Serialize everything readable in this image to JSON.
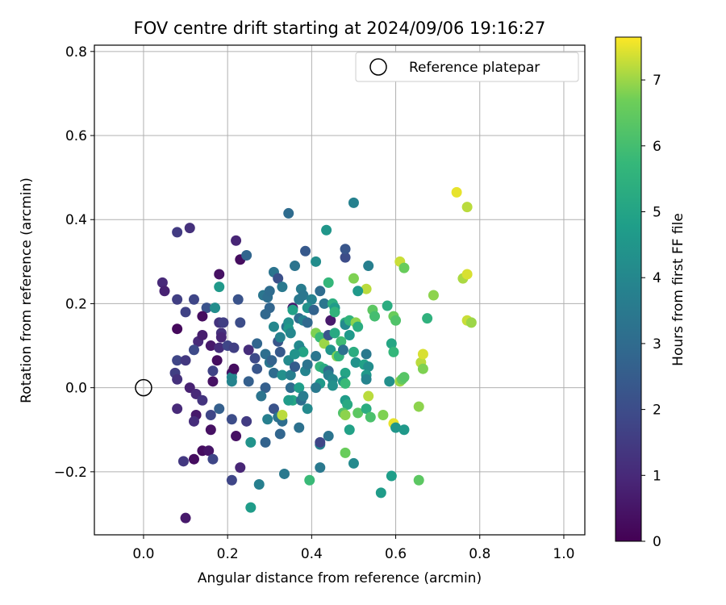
{
  "chart_data": {
    "type": "scatter",
    "title": "FOV centre drift starting at 2024/09/06 19:16:27",
    "xlabel": "Angular distance from reference (arcmin)",
    "ylabel": "Rotation from reference (arcmin)",
    "xlim": [
      -0.117,
      1.05
    ],
    "ylim": [
      -0.35,
      0.815
    ],
    "xticks": [
      "0.0",
      "0.2",
      "0.4",
      "0.6",
      "0.8",
      "1.0"
    ],
    "yticks": [
      "−0.2",
      "0.0",
      "0.2",
      "0.4",
      "0.6",
      "0.8"
    ],
    "xtick_values": [
      0.0,
      0.2,
      0.4,
      0.6,
      0.8,
      1.0
    ],
    "ytick_values": [
      -0.2,
      0.0,
      0.2,
      0.4,
      0.6,
      0.8
    ],
    "grid": true,
    "legend": {
      "position": "top-right",
      "label": "Reference platepar"
    },
    "reference_point": {
      "x": 0.0,
      "y": 0.0
    },
    "colorbar": {
      "label": "Hours from first FF file",
      "colormap": "viridis",
      "range": [
        0,
        7.65
      ],
      "ticks": [
        "0",
        "1",
        "2",
        "3",
        "4",
        "5",
        "6",
        "7"
      ],
      "tick_values": [
        0,
        1,
        2,
        3,
        4,
        5,
        6,
        7
      ]
    },
    "points": [
      {
        "x": 0.1,
        "y": -0.31,
        "h": 0.6
      },
      {
        "x": 0.08,
        "y": 0.37,
        "h": 1.5
      },
      {
        "x": 0.11,
        "y": 0.38,
        "h": 1.2
      },
      {
        "x": 0.045,
        "y": 0.25,
        "h": 1.0
      },
      {
        "x": 0.05,
        "y": 0.23,
        "h": 0.8
      },
      {
        "x": 0.08,
        "y": 0.21,
        "h": 1.6
      },
      {
        "x": 0.1,
        "y": 0.18,
        "h": 1.7
      },
      {
        "x": 0.12,
        "y": 0.21,
        "h": 1.8
      },
      {
        "x": 0.15,
        "y": 0.19,
        "h": 2.2
      },
      {
        "x": 0.14,
        "y": 0.17,
        "h": 0.3
      },
      {
        "x": 0.08,
        "y": 0.14,
        "h": 0.2
      },
      {
        "x": 0.13,
        "y": 0.11,
        "h": 1.0
      },
      {
        "x": 0.14,
        "y": 0.125,
        "h": 0.7
      },
      {
        "x": 0.12,
        "y": 0.09,
        "h": 1.9
      },
      {
        "x": 0.08,
        "y": 0.065,
        "h": 1.8
      },
      {
        "x": 0.1,
        "y": 0.065,
        "h": 1.4
      },
      {
        "x": 0.075,
        "y": 0.035,
        "h": 1.6
      },
      {
        "x": 0.08,
        "y": 0.02,
        "h": 1.2
      },
      {
        "x": 0.11,
        "y": -0.0,
        "h": 0.8
      },
      {
        "x": 0.125,
        "y": -0.015,
        "h": 1.0
      },
      {
        "x": 0.14,
        "y": -0.03,
        "h": 1.3
      },
      {
        "x": 0.08,
        "y": -0.05,
        "h": 1.0
      },
      {
        "x": 0.125,
        "y": -0.065,
        "h": 0.6
      },
      {
        "x": 0.12,
        "y": -0.08,
        "h": 1.1
      },
      {
        "x": 0.16,
        "y": -0.065,
        "h": 1.8
      },
      {
        "x": 0.16,
        "y": -0.1,
        "h": 0.4
      },
      {
        "x": 0.14,
        "y": -0.15,
        "h": 0.3
      },
      {
        "x": 0.155,
        "y": -0.15,
        "h": 0.5
      },
      {
        "x": 0.12,
        "y": -0.17,
        "h": 0.3
      },
      {
        "x": 0.095,
        "y": -0.175,
        "h": 1.4
      },
      {
        "x": 0.165,
        "y": -0.17,
        "h": 1.8
      },
      {
        "x": 0.18,
        "y": 0.27,
        "h": 0.4
      },
      {
        "x": 0.18,
        "y": 0.24,
        "h": 4.6
      },
      {
        "x": 0.17,
        "y": 0.19,
        "h": 4.2
      },
      {
        "x": 0.18,
        "y": 0.155,
        "h": 1.3
      },
      {
        "x": 0.19,
        "y": 0.155,
        "h": 1.6
      },
      {
        "x": 0.185,
        "y": 0.13,
        "h": 1.2
      },
      {
        "x": 0.185,
        "y": 0.12,
        "h": 0.9
      },
      {
        "x": 0.16,
        "y": 0.1,
        "h": 0.6
      },
      {
        "x": 0.18,
        "y": 0.095,
        "h": 1.1
      },
      {
        "x": 0.165,
        "y": 0.04,
        "h": 1.7
      },
      {
        "x": 0.175,
        "y": 0.065,
        "h": 0.3
      },
      {
        "x": 0.165,
        "y": 0.015,
        "h": 0.4
      },
      {
        "x": 0.18,
        "y": -0.05,
        "h": 2.6
      },
      {
        "x": 0.21,
        "y": -0.075,
        "h": 2.0
      },
      {
        "x": 0.21,
        "y": -0.22,
        "h": 1.8
      },
      {
        "x": 0.23,
        "y": -0.19,
        "h": 0.9
      },
      {
        "x": 0.22,
        "y": -0.115,
        "h": 0.4
      },
      {
        "x": 0.22,
        "y": 0.35,
        "h": 0.9
      },
      {
        "x": 0.23,
        "y": 0.305,
        "h": 0.3
      },
      {
        "x": 0.245,
        "y": 0.315,
        "h": 2.8
      },
      {
        "x": 0.225,
        "y": 0.21,
        "h": 2.2
      },
      {
        "x": 0.23,
        "y": 0.155,
        "h": 2.0
      },
      {
        "x": 0.2,
        "y": 0.1,
        "h": 1.8
      },
      {
        "x": 0.215,
        "y": 0.095,
        "h": 1.6
      },
      {
        "x": 0.21,
        "y": 0.035,
        "h": 0.5
      },
      {
        "x": 0.21,
        "y": 0.025,
        "h": 4.0
      },
      {
        "x": 0.21,
        "y": 0.015,
        "h": 3.9
      },
      {
        "x": 0.215,
        "y": 0.045,
        "h": 0.3
      },
      {
        "x": 0.25,
        "y": 0.09,
        "h": 1.1
      },
      {
        "x": 0.25,
        "y": 0.015,
        "h": 2.6
      },
      {
        "x": 0.245,
        "y": -0.08,
        "h": 1.5
      },
      {
        "x": 0.255,
        "y": -0.13,
        "h": 4.4
      },
      {
        "x": 0.255,
        "y": -0.285,
        "h": 4.7
      },
      {
        "x": 0.275,
        "y": -0.23,
        "h": 3.7
      },
      {
        "x": 0.29,
        "y": -0.13,
        "h": 2.7
      },
      {
        "x": 0.27,
        "y": 0.105,
        "h": 2.8
      },
      {
        "x": 0.265,
        "y": 0.07,
        "h": 1.9
      },
      {
        "x": 0.27,
        "y": 0.045,
        "h": 2.3
      },
      {
        "x": 0.285,
        "y": 0.22,
        "h": 3.4
      },
      {
        "x": 0.295,
        "y": 0.215,
        "h": 3.1
      },
      {
        "x": 0.3,
        "y": 0.23,
        "h": 3.0
      },
      {
        "x": 0.3,
        "y": 0.19,
        "h": 2.8
      },
      {
        "x": 0.29,
        "y": 0.175,
        "h": 2.9
      },
      {
        "x": 0.31,
        "y": 0.275,
        "h": 3.3
      },
      {
        "x": 0.32,
        "y": 0.26,
        "h": 2.1
      },
      {
        "x": 0.345,
        "y": 0.415,
        "h": 3.0
      },
      {
        "x": 0.33,
        "y": 0.24,
        "h": 3.5
      },
      {
        "x": 0.31,
        "y": 0.145,
        "h": 4.0
      },
      {
        "x": 0.32,
        "y": 0.11,
        "h": 2.3
      },
      {
        "x": 0.325,
        "y": 0.12,
        "h": 3.8
      },
      {
        "x": 0.29,
        "y": 0.08,
        "h": 3.1
      },
      {
        "x": 0.3,
        "y": 0.06,
        "h": 3.4
      },
      {
        "x": 0.305,
        "y": 0.065,
        "h": 2.7
      },
      {
        "x": 0.325,
        "y": 0.085,
        "h": 2.4
      },
      {
        "x": 0.31,
        "y": 0.035,
        "h": 3.0
      },
      {
        "x": 0.29,
        "y": 0.0,
        "h": 2.6
      },
      {
        "x": 0.28,
        "y": -0.02,
        "h": 3.3
      },
      {
        "x": 0.295,
        "y": -0.075,
        "h": 3.7
      },
      {
        "x": 0.31,
        "y": -0.05,
        "h": 2.2
      },
      {
        "x": 0.32,
        "y": -0.07,
        "h": 3.3
      },
      {
        "x": 0.33,
        "y": -0.08,
        "h": 3.1
      },
      {
        "x": 0.325,
        "y": -0.11,
        "h": 2.8
      },
      {
        "x": 0.33,
        "y": -0.065,
        "h": 7.2
      },
      {
        "x": 0.335,
        "y": -0.205,
        "h": 3.5
      },
      {
        "x": 0.33,
        "y": 0.03,
        "h": 4.3
      },
      {
        "x": 0.345,
        "y": 0.065,
        "h": 4.1
      },
      {
        "x": 0.34,
        "y": 0.145,
        "h": 3.2
      },
      {
        "x": 0.345,
        "y": 0.155,
        "h": 4.3
      },
      {
        "x": 0.345,
        "y": 0.14,
        "h": 4.6
      },
      {
        "x": 0.35,
        "y": 0.13,
        "h": 4.0
      },
      {
        "x": 0.355,
        "y": 0.19,
        "h": 0.7
      },
      {
        "x": 0.355,
        "y": 0.185,
        "h": 4.9
      },
      {
        "x": 0.36,
        "y": 0.29,
        "h": 3.3
      },
      {
        "x": 0.37,
        "y": 0.21,
        "h": 3.5
      },
      {
        "x": 0.375,
        "y": 0.235,
        "h": 3.6
      },
      {
        "x": 0.38,
        "y": 0.22,
        "h": 3.4
      },
      {
        "x": 0.385,
        "y": 0.325,
        "h": 2.4
      },
      {
        "x": 0.37,
        "y": 0.165,
        "h": 3.1
      },
      {
        "x": 0.38,
        "y": 0.16,
        "h": 3.8
      },
      {
        "x": 0.39,
        "y": 0.155,
        "h": 2.9
      },
      {
        "x": 0.37,
        "y": 0.1,
        "h": 4.1
      },
      {
        "x": 0.375,
        "y": 0.09,
        "h": 3.9
      },
      {
        "x": 0.38,
        "y": 0.085,
        "h": 5.0
      },
      {
        "x": 0.36,
        "y": 0.08,
        "h": 4.4
      },
      {
        "x": 0.35,
        "y": 0.03,
        "h": 3.7
      },
      {
        "x": 0.36,
        "y": 0.05,
        "h": 2.5
      },
      {
        "x": 0.355,
        "y": -0.03,
        "h": 5.1
      },
      {
        "x": 0.345,
        "y": -0.03,
        "h": 4.7
      },
      {
        "x": 0.35,
        "y": -0.0,
        "h": 3.0
      },
      {
        "x": 0.37,
        "y": -0.0,
        "h": 4.8
      },
      {
        "x": 0.375,
        "y": -0.03,
        "h": 3.1
      },
      {
        "x": 0.38,
        "y": -0.02,
        "h": 3.6
      },
      {
        "x": 0.385,
        "y": 0.04,
        "h": 3.9
      },
      {
        "x": 0.39,
        "y": 0.055,
        "h": 3.3
      },
      {
        "x": 0.39,
        "y": -0.05,
        "h": 4.1
      },
      {
        "x": 0.37,
        "y": -0.095,
        "h": 3.2
      },
      {
        "x": 0.395,
        "y": -0.22,
        "h": 5.8
      },
      {
        "x": 0.42,
        "y": -0.19,
        "h": 3.5
      },
      {
        "x": 0.42,
        "y": -0.135,
        "h": 3.8
      },
      {
        "x": 0.42,
        "y": -0.13,
        "h": 1.8
      },
      {
        "x": 0.44,
        "y": -0.115,
        "h": 3.3
      },
      {
        "x": 0.41,
        "y": 0.3,
        "h": 4.2
      },
      {
        "x": 0.435,
        "y": 0.375,
        "h": 4.5
      },
      {
        "x": 0.44,
        "y": 0.25,
        "h": 5.7
      },
      {
        "x": 0.42,
        "y": 0.23,
        "h": 3.0
      },
      {
        "x": 0.4,
        "y": 0.21,
        "h": 3.8
      },
      {
        "x": 0.39,
        "y": 0.19,
        "h": 4.4
      },
      {
        "x": 0.405,
        "y": 0.185,
        "h": 2.7
      },
      {
        "x": 0.43,
        "y": 0.2,
        "h": 3.4
      },
      {
        "x": 0.41,
        "y": 0.13,
        "h": 6.8
      },
      {
        "x": 0.42,
        "y": 0.12,
        "h": 5.8
      },
      {
        "x": 0.43,
        "y": 0.105,
        "h": 7.0
      },
      {
        "x": 0.44,
        "y": 0.125,
        "h": 2.3
      },
      {
        "x": 0.445,
        "y": 0.16,
        "h": 0.6
      },
      {
        "x": 0.45,
        "y": 0.2,
        "h": 5.4
      },
      {
        "x": 0.455,
        "y": 0.19,
        "h": 4.7
      },
      {
        "x": 0.455,
        "y": 0.18,
        "h": 5.6
      },
      {
        "x": 0.455,
        "y": 0.13,
        "h": 5.2
      },
      {
        "x": 0.445,
        "y": 0.09,
        "h": 4.5
      },
      {
        "x": 0.41,
        "y": 0.075,
        "h": 3.4
      },
      {
        "x": 0.42,
        "y": 0.05,
        "h": 5.6
      },
      {
        "x": 0.43,
        "y": 0.045,
        "h": 5.2
      },
      {
        "x": 0.44,
        "y": 0.04,
        "h": 2.9
      },
      {
        "x": 0.44,
        "y": 0.03,
        "h": 3.7
      },
      {
        "x": 0.45,
        "y": 0.02,
        "h": 4.0
      },
      {
        "x": 0.42,
        "y": 0.01,
        "h": 4.6
      },
      {
        "x": 0.41,
        "y": -0.0,
        "h": 3.5
      },
      {
        "x": 0.45,
        "y": 0.005,
        "h": 4.3
      },
      {
        "x": 0.46,
        "y": 0.075,
        "h": 6.8
      },
      {
        "x": 0.465,
        "y": 0.075,
        "h": 5.6
      },
      {
        "x": 0.47,
        "y": 0.11,
        "h": 5.9
      },
      {
        "x": 0.475,
        "y": 0.09,
        "h": 3.2
      },
      {
        "x": 0.48,
        "y": 0.155,
        "h": 5.4
      },
      {
        "x": 0.48,
        "y": 0.15,
        "h": 4.1
      },
      {
        "x": 0.49,
        "y": 0.125,
        "h": 4.6
      },
      {
        "x": 0.48,
        "y": 0.31,
        "h": 2.0
      },
      {
        "x": 0.48,
        "y": 0.33,
        "h": 2.3
      },
      {
        "x": 0.5,
        "y": 0.44,
        "h": 3.8
      },
      {
        "x": 0.5,
        "y": 0.26,
        "h": 6.8
      },
      {
        "x": 0.53,
        "y": 0.235,
        "h": 7.2
      },
      {
        "x": 0.51,
        "y": 0.23,
        "h": 4.6
      },
      {
        "x": 0.535,
        "y": 0.29,
        "h": 3.7
      },
      {
        "x": 0.49,
        "y": 0.16,
        "h": 5.6
      },
      {
        "x": 0.505,
        "y": 0.155,
        "h": 6.9
      },
      {
        "x": 0.51,
        "y": 0.145,
        "h": 5.3
      },
      {
        "x": 0.5,
        "y": 0.085,
        "h": 5.3
      },
      {
        "x": 0.505,
        "y": 0.06,
        "h": 4.4
      },
      {
        "x": 0.53,
        "y": 0.08,
        "h": 3.5
      },
      {
        "x": 0.525,
        "y": 0.055,
        "h": 4.9
      },
      {
        "x": 0.535,
        "y": 0.05,
        "h": 4.2
      },
      {
        "x": 0.53,
        "y": 0.03,
        "h": 4.6
      },
      {
        "x": 0.53,
        "y": 0.02,
        "h": 3.9
      },
      {
        "x": 0.48,
        "y": 0.035,
        "h": 5.0
      },
      {
        "x": 0.475,
        "y": 0.015,
        "h": 4.5
      },
      {
        "x": 0.48,
        "y": 0.01,
        "h": 5.8
      },
      {
        "x": 0.48,
        "y": -0.03,
        "h": 4.7
      },
      {
        "x": 0.485,
        "y": -0.04,
        "h": 5.2
      },
      {
        "x": 0.475,
        "y": -0.06,
        "h": 6.2
      },
      {
        "x": 0.48,
        "y": -0.065,
        "h": 6.9
      },
      {
        "x": 0.49,
        "y": -0.1,
        "h": 4.9
      },
      {
        "x": 0.48,
        "y": -0.155,
        "h": 6.6
      },
      {
        "x": 0.5,
        "y": -0.18,
        "h": 4.1
      },
      {
        "x": 0.51,
        "y": -0.06,
        "h": 6.4
      },
      {
        "x": 0.53,
        "y": -0.05,
        "h": 5.3
      },
      {
        "x": 0.535,
        "y": -0.02,
        "h": 7.2
      },
      {
        "x": 0.54,
        "y": -0.07,
        "h": 6.1
      },
      {
        "x": 0.545,
        "y": 0.185,
        "h": 6.4
      },
      {
        "x": 0.55,
        "y": 0.17,
        "h": 6.0
      },
      {
        "x": 0.565,
        "y": -0.25,
        "h": 4.7
      },
      {
        "x": 0.57,
        "y": -0.065,
        "h": 6.8
      },
      {
        "x": 0.58,
        "y": 0.195,
        "h": 5.3
      },
      {
        "x": 0.585,
        "y": 0.015,
        "h": 4.3
      },
      {
        "x": 0.59,
        "y": 0.105,
        "h": 5.1
      },
      {
        "x": 0.595,
        "y": 0.085,
        "h": 5.7
      },
      {
        "x": 0.59,
        "y": -0.21,
        "h": 4.8
      },
      {
        "x": 0.595,
        "y": -0.085,
        "h": 7.5
      },
      {
        "x": 0.6,
        "y": -0.095,
        "h": 4.5
      },
      {
        "x": 0.595,
        "y": 0.17,
        "h": 6.6
      },
      {
        "x": 0.6,
        "y": 0.16,
        "h": 6.2
      },
      {
        "x": 0.61,
        "y": 0.3,
        "h": 7.3
      },
      {
        "x": 0.62,
        "y": 0.285,
        "h": 6.6
      },
      {
        "x": 0.61,
        "y": 0.015,
        "h": 7.0
      },
      {
        "x": 0.615,
        "y": 0.02,
        "h": 6.5
      },
      {
        "x": 0.62,
        "y": 0.025,
        "h": 6.3
      },
      {
        "x": 0.62,
        "y": -0.1,
        "h": 4.6
      },
      {
        "x": 0.66,
        "y": 0.06,
        "h": 7.2
      },
      {
        "x": 0.665,
        "y": 0.045,
        "h": 6.8
      },
      {
        "x": 0.665,
        "y": 0.08,
        "h": 7.4
      },
      {
        "x": 0.655,
        "y": -0.045,
        "h": 6.9
      },
      {
        "x": 0.655,
        "y": -0.22,
        "h": 6.4
      },
      {
        "x": 0.675,
        "y": 0.165,
        "h": 5.5
      },
      {
        "x": 0.69,
        "y": 0.22,
        "h": 6.9
      },
      {
        "x": 0.745,
        "y": 0.465,
        "h": 7.5
      },
      {
        "x": 0.77,
        "y": 0.43,
        "h": 7.2
      },
      {
        "x": 0.76,
        "y": 0.26,
        "h": 7.1
      },
      {
        "x": 0.77,
        "y": 0.27,
        "h": 7.4
      },
      {
        "x": 0.77,
        "y": 0.16,
        "h": 7.3
      },
      {
        "x": 0.78,
        "y": 0.155,
        "h": 7.0
      }
    ]
  }
}
